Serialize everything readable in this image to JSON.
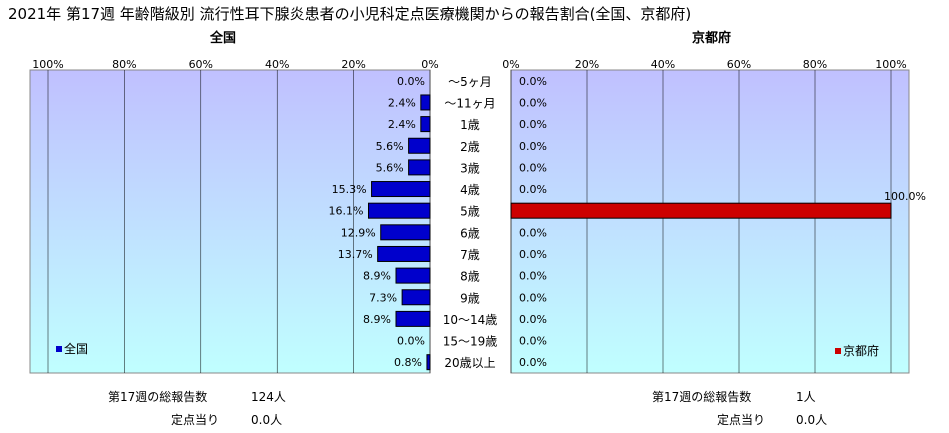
{
  "title": "2021年 第17週 年齢階級別 流行性耳下腺炎患者の小児科定点医療機関からの報告割合(全国、京都府)",
  "chart_data": {
    "type": "bar",
    "categories": [
      "～5ヶ月",
      "～11ヶ月",
      "1歳",
      "2歳",
      "3歳",
      "4歳",
      "5歳",
      "6歳",
      "7歳",
      "8歳",
      "9歳",
      "10～14歳",
      "15～19歳",
      "20歳以上"
    ],
    "x_ticks": [
      "100%",
      "80%",
      "60%",
      "40%",
      "20%",
      "0%"
    ],
    "x_ticks_right": [
      "0%",
      "20%",
      "40%",
      "60%",
      "80%",
      "100%"
    ],
    "xlim": [
      0,
      100
    ],
    "grid": true,
    "series": [
      {
        "name": "全国",
        "color": "#0000cc",
        "panel": "left",
        "values": [
          0.0,
          2.4,
          2.4,
          5.6,
          5.6,
          15.3,
          16.1,
          12.9,
          13.7,
          8.9,
          7.3,
          8.9,
          0.0,
          0.8
        ]
      },
      {
        "name": "京都府",
        "color": "#cc0000",
        "panel": "right",
        "values": [
          0.0,
          0.0,
          0.0,
          0.0,
          0.0,
          0.0,
          100.0,
          0.0,
          0.0,
          0.0,
          0.0,
          0.0,
          0.0,
          0.0
        ]
      }
    ]
  },
  "panels": {
    "left": {
      "title": "全国",
      "legend": "全国",
      "total_label": "第17週の総報告数",
      "total_value": "124人",
      "per_label": "定点当り",
      "per_value": "0.0人"
    },
    "right": {
      "title": "京都府",
      "legend": "京都府",
      "total_label": "第17週の総報告数",
      "total_value": "1人",
      "per_label": "定点当り",
      "per_value": "0.0人"
    }
  }
}
